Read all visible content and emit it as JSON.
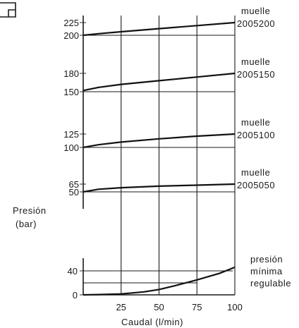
{
  "chart_data": [
    {
      "type": "line",
      "xlabel": "Caudal (l/min)",
      "ylabel": "Presión (bar)",
      "xlim": [
        0,
        100
      ],
      "panels": [
        {
          "spring_label": [
            "muelle",
            "2005200"
          ],
          "yticks": [
            200,
            225
          ],
          "ylim": [
            195,
            227
          ],
          "x": [
            0,
            10,
            25,
            50,
            75,
            100
          ],
          "y": [
            200,
            203,
            207,
            213,
            219,
            225
          ]
        },
        {
          "spring_label": [
            "muelle",
            "2005150"
          ],
          "yticks": [
            150,
            180
          ],
          "ylim": [
            145,
            182
          ],
          "x": [
            0,
            10,
            25,
            50,
            75,
            100
          ],
          "y": [
            152,
            157,
            162,
            168,
            174,
            180
          ]
        },
        {
          "spring_label": [
            "muelle",
            "2005100"
          ],
          "yticks": [
            100,
            125
          ],
          "ylim": [
            95,
            127
          ],
          "x": [
            0,
            10,
            25,
            50,
            75,
            100
          ],
          "y": [
            100,
            105,
            110,
            116,
            121,
            125
          ]
        },
        {
          "spring_label": [
            "muelle",
            "2005050"
          ],
          "yticks": [
            50,
            65
          ],
          "ylim": [
            46,
            67
          ],
          "x": [
            0,
            10,
            25,
            50,
            75,
            100
          ],
          "y": [
            50,
            55,
            58,
            61,
            63,
            65
          ]
        }
      ]
    },
    {
      "type": "line",
      "title_lines": [
        "presión",
        "mínima",
        "regulable"
      ],
      "xlabel": "Caudal (l/min)",
      "xticks": [
        0,
        25,
        50,
        75,
        100
      ],
      "xlim": [
        0,
        100
      ],
      "yticks": [
        0,
        40
      ],
      "ylim": [
        0,
        48
      ],
      "x": [
        0,
        10,
        25,
        40,
        50,
        60,
        75,
        90,
        100
      ],
      "y": [
        0,
        0.5,
        1.5,
        5,
        9,
        15,
        25,
        36,
        46
      ]
    }
  ]
}
